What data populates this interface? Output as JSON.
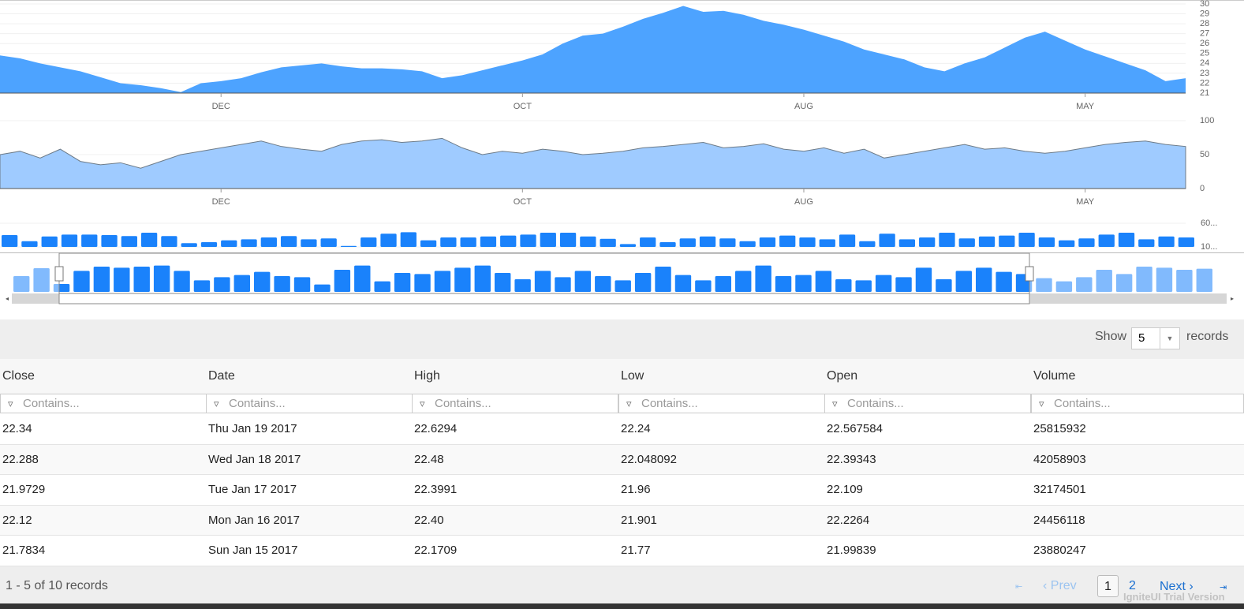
{
  "price_chart": {
    "type": "area",
    "color": "#4da3ff",
    "categories": [
      null,
      null,
      null,
      null,
      null,
      null,
      null,
      null,
      null,
      null,
      null,
      "DEC",
      null,
      null,
      null,
      null,
      null,
      null,
      null,
      null,
      null,
      null,
      null,
      null,
      null,
      null,
      "OCT",
      null,
      null,
      null,
      null,
      null,
      null,
      null,
      null,
      null,
      null,
      null,
      null,
      null,
      "AUG",
      null,
      null,
      null,
      null,
      null,
      null,
      null,
      null,
      null,
      null,
      null,
      null,
      null,
      "MAY",
      null,
      null,
      null,
      null,
      null
    ],
    "values": [
      24.8,
      24.5,
      24.0,
      23.6,
      23.2,
      22.6,
      22.0,
      21.8,
      21.5,
      21.1,
      22.0,
      22.2,
      22.5,
      23.1,
      23.6,
      23.8,
      24.0,
      23.7,
      23.5,
      23.5,
      23.4,
      23.2,
      22.5,
      22.8,
      23.3,
      23.8,
      24.3,
      24.9,
      26.0,
      26.8,
      27.0,
      27.7,
      28.5,
      29.1,
      29.8,
      29.2,
      29.3,
      28.9,
      28.3,
      27.9,
      27.4,
      26.8,
      26.2,
      25.4,
      24.9,
      24.4,
      23.6,
      23.2,
      24.0,
      24.6,
      25.6,
      26.6,
      27.2,
      26.3,
      25.4,
      24.7,
      24.0,
      23.3,
      22.2,
      22.5
    ],
    "ylim": [
      21,
      30
    ],
    "yticks": [
      21,
      22,
      23,
      24,
      25,
      26,
      27,
      28,
      29,
      30
    ]
  },
  "indicator_chart": {
    "type": "area",
    "color": "#9fcbff",
    "values": [
      50,
      55,
      45,
      58,
      40,
      35,
      38,
      30,
      40,
      50,
      55,
      60,
      65,
      70,
      62,
      58,
      55,
      65,
      70,
      72,
      68,
      70,
      74,
      60,
      50,
      55,
      52,
      58,
      55,
      50,
      52,
      55,
      60,
      62,
      65,
      68,
      60,
      62,
      66,
      58,
      55,
      60,
      52,
      58,
      45,
      50,
      55,
      60,
      65,
      58,
      60,
      55,
      52,
      55,
      60,
      65,
      68,
      70,
      65,
      62
    ],
    "ylim": [
      0,
      100
    ],
    "yticks": [
      0,
      50,
      100
    ]
  },
  "volume_chart": {
    "type": "bar",
    "color": "#1a82fb",
    "values": [
      35,
      22,
      32,
      36,
      36,
      35,
      33,
      40,
      33,
      18,
      20,
      24,
      26,
      30,
      33,
      26,
      28,
      12,
      30,
      38,
      41,
      24,
      30,
      30,
      32,
      34,
      36,
      40,
      40,
      32,
      27,
      16,
      30,
      20,
      28,
      32,
      28,
      22,
      30,
      34,
      30,
      26,
      36,
      22,
      38,
      26,
      30,
      40,
      28,
      32,
      34,
      40,
      30,
      24,
      28,
      36,
      40,
      26,
      32,
      30
    ],
    "ylim": [
      10,
      60
    ],
    "yticks": [
      {
        "value": 10,
        "label": "10..."
      },
      {
        "value": 60,
        "label": "60..."
      }
    ]
  },
  "overview": {
    "type": "bar",
    "color": "#1a82fb",
    "values": [
      30,
      45,
      15,
      40,
      48,
      46,
      48,
      50,
      40,
      22,
      28,
      32,
      38,
      30,
      28,
      14,
      42,
      50,
      20,
      36,
      34,
      40,
      46,
      50,
      36,
      24,
      40,
      28,
      40,
      30,
      22,
      36,
      48,
      32,
      22,
      30,
      40,
      50,
      30,
      32,
      40,
      24,
      22,
      32,
      28,
      46,
      24,
      40,
      46,
      38,
      34,
      26,
      20,
      28,
      42,
      34,
      48,
      46,
      42,
      44
    ],
    "ylim": [
      0,
      60
    ]
  },
  "grid": {
    "show_label": "Show",
    "page_size": "5",
    "records_label": "records",
    "columns": [
      "Close",
      "Date",
      "High",
      "Low",
      "Open",
      "Volume"
    ],
    "filter_placeholder": "Contains...",
    "rows": [
      [
        "22.34",
        "Thu Jan 19 2017",
        "22.6294",
        "22.24",
        "22.567584",
        "25815932"
      ],
      [
        "22.288",
        "Wed Jan 18 2017",
        "22.48",
        "22.048092",
        "22.39343",
        "42058903"
      ],
      [
        "21.9729",
        "Tue Jan 17 2017",
        "22.3991",
        "21.96",
        "22.109",
        "32174501"
      ],
      [
        "22.12",
        "Mon Jan 16 2017",
        "22.40",
        "21.901",
        "22.2264",
        "24456118"
      ],
      [
        "21.7834",
        "Sun Jan 15 2017",
        "22.1709",
        "21.77",
        "21.99839",
        "23880247"
      ]
    ],
    "summary": "1 - 5 of 10 records",
    "pager": {
      "prev": "Prev",
      "pages": [
        "1",
        "2"
      ],
      "next": "Next"
    },
    "watermark": "IgniteUI Trial Version"
  }
}
